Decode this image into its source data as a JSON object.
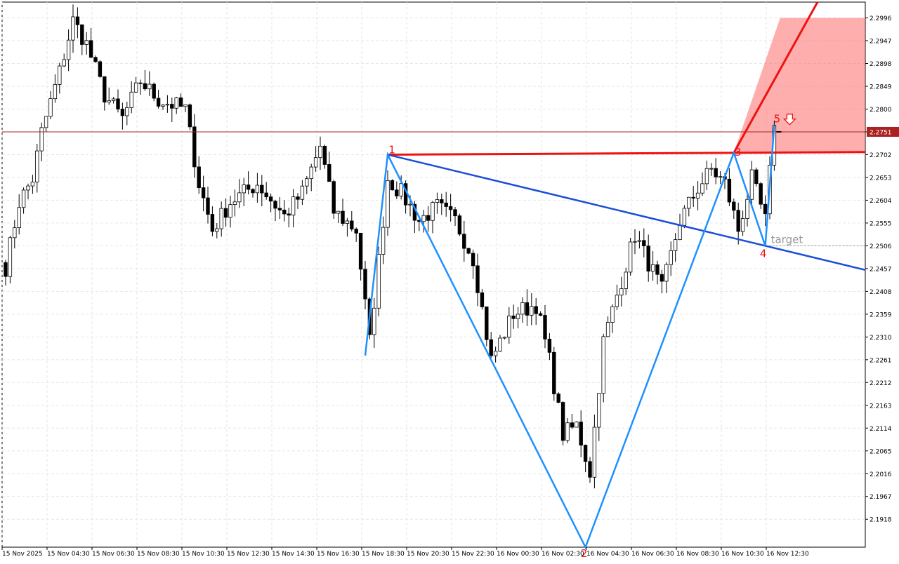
{
  "chart_data": {
    "type": "candlestick",
    "title": "",
    "y_ticks": [
      "2.2996",
      "2.2947",
      "2.2898",
      "2.2849",
      "2.2800",
      "2.2751",
      "2.2702",
      "2.2653",
      "2.2604",
      "2.2555",
      "2.2506",
      "2.2457",
      "2.2408",
      "2.2359",
      "2.2310",
      "2.2261",
      "2.2212",
      "2.2163",
      "2.2114",
      "2.2065",
      "2.2016",
      "2.1967",
      "2.1918"
    ],
    "ylim": [
      2.1858,
      2.303
    ],
    "x_ticks": [
      "15 Nov 2025",
      "15 Nov 04:30",
      "15 Nov 06:30",
      "15 Nov 08:30",
      "15 Nov 10:30",
      "15 Nov 12:30",
      "15 Nov 14:30",
      "15 Nov 16:30",
      "15 Nov 18:30",
      "15 Nov 20:30",
      "15 Nov 22:30",
      "16 Nov 00:30",
      "16 Nov 02:30",
      "16 Nov 04:30",
      "16 Nov 06:30",
      "16 Nov 08:30",
      "16 Nov 10:30",
      "16 Nov 12:30"
    ],
    "bar_count": 200,
    "current_price": "2.2751",
    "grid": true,
    "colors": {
      "bull_fill": "#ffffff",
      "bear_fill": "#000000",
      "wick": "#000000",
      "zigzag": "#1e90ff",
      "channel_low": "#1a4fd6",
      "channel_high": "#ee1111",
      "zone_fill": "#ff6b6b",
      "price_line": "#aa2222",
      "label_red": "#ee1111",
      "target_label": "#999999",
      "grid": "#e6e6e6"
    },
    "wave_points": [
      {
        "label": "1",
        "bar": 85,
        "price": 2.2702
      },
      {
        "label": "2",
        "bar": 129,
        "price": 2.1858
      },
      {
        "label": "3",
        "bar": 162,
        "price": 2.2706
      },
      {
        "label": "4",
        "bar": 169,
        "price": 2.2506
      },
      {
        "label": "5",
        "bar": 171,
        "price": 2.2765
      }
    ],
    "zigzag_path": [
      {
        "bar": 80,
        "price": 2.227
      },
      {
        "bar": 85,
        "price": 2.2702
      },
      {
        "bar": 129,
        "price": 2.1858
      },
      {
        "bar": 162,
        "price": 2.2706
      },
      {
        "bar": 169,
        "price": 2.2506
      },
      {
        "bar": 171,
        "price": 2.2765
      }
    ],
    "target": {
      "label": "target",
      "price": 2.2506
    },
    "candles_anchor_closes": [
      [
        0,
        2.246
      ],
      [
        3,
        2.26
      ],
      [
        6,
        2.265
      ],
      [
        8,
        2.275
      ],
      [
        12,
        2.288
      ],
      [
        15,
        2.299
      ],
      [
        18,
        2.294
      ],
      [
        22,
        2.283
      ],
      [
        26,
        2.278
      ],
      [
        30,
        2.286
      ],
      [
        34,
        2.282
      ],
      [
        40,
        2.28
      ],
      [
        43,
        2.264
      ],
      [
        46,
        2.254
      ],
      [
        50,
        2.26
      ],
      [
        56,
        2.264
      ],
      [
        62,
        2.257
      ],
      [
        66,
        2.262
      ],
      [
        70,
        2.272
      ],
      [
        73,
        2.258
      ],
      [
        78,
        2.254
      ],
      [
        81,
        2.23
      ],
      [
        85,
        2.265
      ],
      [
        88,
        2.262
      ],
      [
        92,
        2.256
      ],
      [
        96,
        2.259
      ],
      [
        100,
        2.256
      ],
      [
        104,
        2.248
      ],
      [
        108,
        2.226
      ],
      [
        113,
        2.236
      ],
      [
        118,
        2.238
      ],
      [
        121,
        2.226
      ],
      [
        124,
        2.21
      ],
      [
        127,
        2.212
      ],
      [
        130,
        2.202
      ],
      [
        133,
        2.23
      ],
      [
        136,
        2.24
      ],
      [
        140,
        2.253
      ],
      [
        143,
        2.247
      ],
      [
        146,
        2.241
      ],
      [
        150,
        2.256
      ],
      [
        154,
        2.263
      ],
      [
        157,
        2.267
      ],
      [
        160,
        2.264
      ],
      [
        163,
        2.254
      ],
      [
        166,
        2.265
      ],
      [
        169,
        2.256
      ],
      [
        171,
        2.2765
      ]
    ]
  }
}
